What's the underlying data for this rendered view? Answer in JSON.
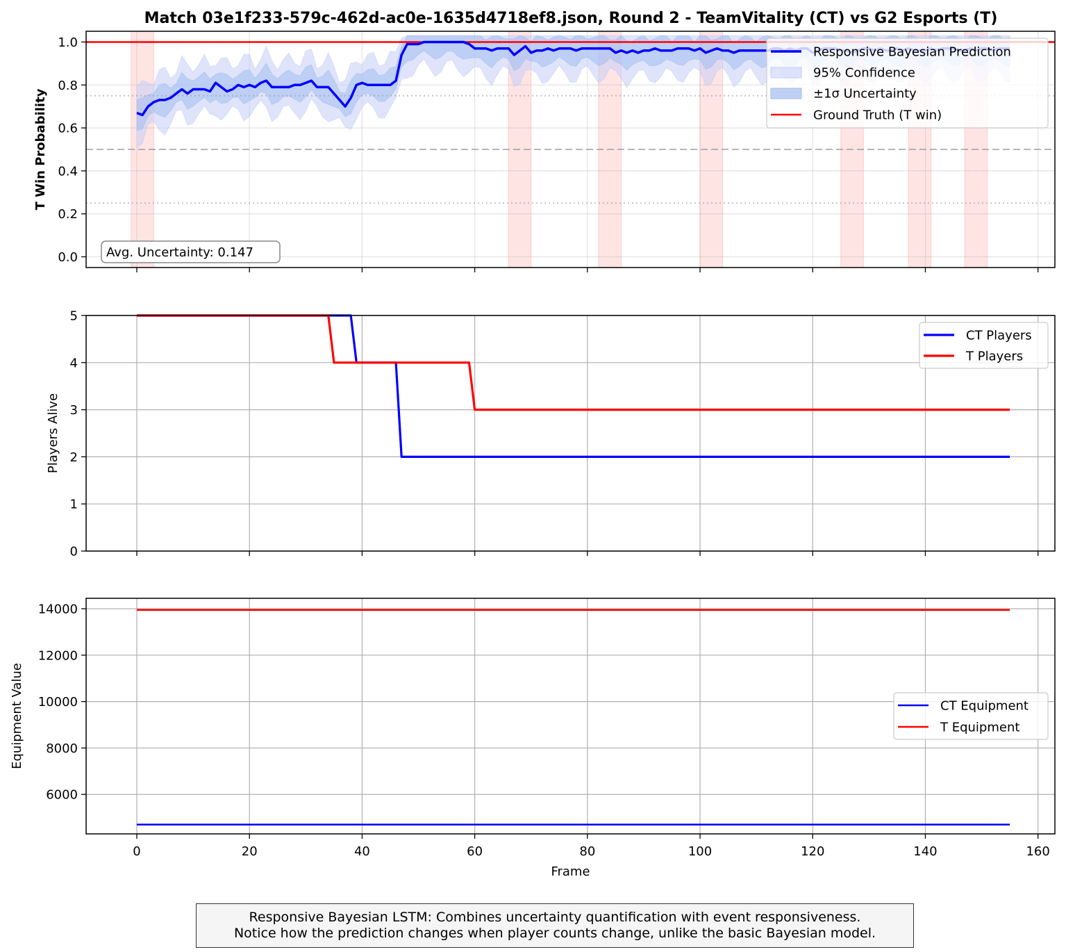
{
  "title": "Match 03e1f233-579c-462d-ac0e-1635d4718ef8.json, Round 2 - TeamVitality (CT) vs G2 Esports (T)",
  "caption": {
    "line1": "Responsive Bayesian LSTM: Combines uncertainty quantification with event responsiveness.",
    "line2": "Notice how the prediction changes when player counts change, unlike the basic Bayesian model."
  },
  "colors": {
    "ct": "#0000ff",
    "t": "#ff0000",
    "band95": "#c4cdf7",
    "band1s": "#a3bdf0",
    "event": "#ffd6d6"
  },
  "chart_data": [
    {
      "type": "line",
      "ylabel": "T Win Probability",
      "xlim": [
        -9,
        163
      ],
      "ylim": [
        -0.05,
        1.05
      ],
      "yticks": [
        "0.0",
        "0.2",
        "0.4",
        "0.6",
        "0.8",
        "1.0"
      ],
      "grid": true,
      "legend": {
        "placement": "top-right",
        "entries": [
          "Responsive Bayesian Prediction",
          "95% Confidence",
          "±1σ Uncertainty",
          "Ground Truth (T win)"
        ]
      },
      "annotation": "Avg. Uncertainty: 0.147",
      "reference_lines": {
        "ground_truth": 1.0,
        "dashed": 0.5,
        "dotted": [
          0.25,
          0.75
        ]
      },
      "event_spans": [
        [
          -1,
          3
        ],
        [
          66,
          70
        ],
        [
          82,
          86
        ],
        [
          100,
          104
        ],
        [
          125,
          129
        ],
        [
          137,
          141
        ],
        [
          147,
          151
        ]
      ],
      "series": [
        {
          "name": "Responsive Bayesian Prediction",
          "x_start": 0,
          "x_step": 1,
          "values": [
            0.67,
            0.66,
            0.7,
            0.72,
            0.73,
            0.73,
            0.74,
            0.76,
            0.78,
            0.76,
            0.78,
            0.78,
            0.78,
            0.77,
            0.81,
            0.79,
            0.77,
            0.78,
            0.8,
            0.79,
            0.8,
            0.79,
            0.81,
            0.82,
            0.79,
            0.79,
            0.79,
            0.79,
            0.8,
            0.8,
            0.81,
            0.82,
            0.79,
            0.79,
            0.79,
            0.76,
            0.73,
            0.7,
            0.74,
            0.8,
            0.81,
            0.8,
            0.8,
            0.8,
            0.8,
            0.8,
            0.82,
            0.94,
            0.99,
            0.99,
            0.99,
            1.0,
            1.0,
            1.0,
            1.0,
            1.0,
            1.0,
            1.0,
            1.0,
            0.99,
            0.97,
            0.97,
            0.97,
            0.96,
            0.97,
            0.97,
            0.97,
            0.94,
            0.96,
            0.98,
            0.95,
            0.96,
            0.96,
            0.97,
            0.96,
            0.97,
            0.97,
            0.97,
            0.96,
            0.97,
            0.97,
            0.97,
            0.97,
            0.97,
            0.97,
            0.95,
            0.96,
            0.95,
            0.96,
            0.95,
            0.96,
            0.96,
            0.97,
            0.96,
            0.96,
            0.96,
            0.97,
            0.97,
            0.97,
            0.96,
            0.97,
            0.95,
            0.96,
            0.97,
            0.96,
            0.96,
            0.95,
            0.96,
            0.96,
            0.96,
            0.96,
            0.96,
            0.96,
            0.97,
            0.97,
            0.96,
            0.97,
            0.96,
            0.97,
            0.97,
            0.95,
            0.96,
            0.97,
            0.97,
            0.97,
            0.96,
            0.96,
            0.95,
            0.96,
            0.97,
            0.97,
            0.96,
            0.97,
            0.96,
            0.96,
            0.97,
            0.96,
            0.97,
            0.96,
            0.96,
            0.96,
            0.97,
            0.96,
            0.97,
            0.97,
            0.97,
            0.96,
            0.96,
            0.97,
            0.96,
            0.97,
            0.97,
            0.96,
            0.97,
            0.97,
            0.97
          ]
        }
      ],
      "sigma_halfwidth": 0.06,
      "ci95_halfwidth": 0.12
    },
    {
      "type": "line",
      "ylabel": "Players Alive",
      "xlim": [
        -9,
        163
      ],
      "ylim": [
        0,
        5
      ],
      "yticks": [
        "0",
        "1",
        "2",
        "3",
        "4",
        "5"
      ],
      "grid": true,
      "legend": {
        "placement": "top-right",
        "entries": [
          "CT Players",
          "T Players"
        ]
      },
      "series": [
        {
          "name": "CT Players",
          "points": [
            [
              0,
              5
            ],
            [
              38,
              5
            ],
            [
              39,
              4
            ],
            [
              46,
              4
            ],
            [
              47,
              2
            ],
            [
              155,
              2
            ]
          ]
        },
        {
          "name": "T Players",
          "points": [
            [
              0,
              5
            ],
            [
              34,
              5
            ],
            [
              35,
              4
            ],
            [
              59,
              4
            ],
            [
              60,
              3
            ],
            [
              155,
              3
            ]
          ]
        }
      ]
    },
    {
      "type": "line",
      "ylabel": "Equipment Value",
      "xlabel": "Frame",
      "xlim": [
        -9,
        163
      ],
      "ylim": [
        4300,
        14450
      ],
      "xticks": [
        "0",
        "20",
        "40",
        "60",
        "80",
        "100",
        "120",
        "140",
        "160"
      ],
      "yticks": [
        "6000",
        "8000",
        "10000",
        "12000",
        "14000"
      ],
      "grid": true,
      "legend": {
        "placement": "center-right",
        "entries": [
          "CT Equipment",
          "T Equipment"
        ]
      },
      "series": [
        {
          "name": "CT Equipment",
          "points": [
            [
              0,
              4700
            ],
            [
              155,
              4700
            ]
          ]
        },
        {
          "name": "T Equipment",
          "points": [
            [
              0,
              13950
            ],
            [
              155,
              13950
            ]
          ]
        }
      ]
    }
  ]
}
